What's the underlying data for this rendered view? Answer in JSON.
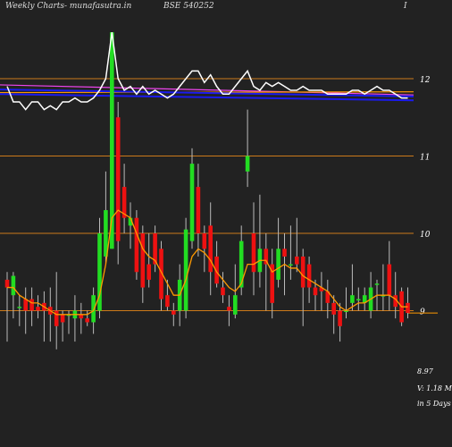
{
  "header": {
    "title_left": "Weekly Charts",
    "site": "- munafasutra.in",
    "symbol": "BSE 540252",
    "corner": "I"
  },
  "footer": {
    "last_price": "8.97",
    "volume_text": "V: 1.18  M",
    "period_text": "in 5 Days"
  },
  "colors": {
    "background": "#222222",
    "up": "#22dd22",
    "down": "#ee1111",
    "level_line": "#cc7a1a",
    "ema_line": "#ff9900",
    "rsi_line": "#ffffff",
    "band_blue": "#1a1aee",
    "band_pink": "#ee44ee"
  },
  "chart_data": {
    "type": "candlestick",
    "y_axis": {
      "ticks": [
        12,
        11,
        10,
        9
      ],
      "range": [
        8.2,
        12.5
      ]
    },
    "levels": [
      12,
      11,
      10,
      9
    ],
    "candles": [
      [
        9.4,
        9.3,
        9.5,
        8.6
      ],
      [
        9.2,
        9.45,
        9.5,
        8.9
      ],
      [
        9.05,
        9.05,
        9.2,
        8.8
      ],
      [
        9.15,
        9.0,
        9.3,
        8.7
      ],
      [
        9.15,
        9.0,
        9.3,
        8.8
      ],
      [
        9.05,
        9.0,
        9.2,
        8.9
      ],
      [
        9.1,
        9.0,
        9.25,
        8.6
      ],
      [
        9.05,
        8.95,
        9.3,
        8.6
      ],
      [
        9.0,
        8.8,
        9.5,
        8.5
      ],
      [
        8.95,
        8.85,
        9.0,
        8.6
      ],
      [
        8.95,
        8.95,
        9.0,
        8.7
      ],
      [
        8.9,
        9.0,
        9.2,
        8.6
      ],
      [
        8.95,
        8.9,
        9.1,
        8.7
      ],
      [
        8.9,
        8.85,
        9.0,
        8.8
      ],
      [
        8.85,
        9.2,
        9.3,
        8.7
      ],
      [
        9.0,
        10.0,
        10.2,
        8.9
      ],
      [
        9.7,
        10.3,
        10.8,
        9.6
      ],
      [
        9.8,
        12.6,
        12.6,
        9.8
      ],
      [
        11.5,
        9.9,
        11.7,
        9.6
      ],
      [
        10.6,
        10.2,
        10.9,
        10.0
      ],
      [
        10.1,
        10.2,
        10.4,
        9.8
      ],
      [
        10.2,
        9.5,
        10.3,
        9.4
      ],
      [
        10.0,
        9.3,
        10.1,
        9.1
      ],
      [
        9.6,
        9.4,
        10.0,
        9.3
      ],
      [
        10.0,
        9.6,
        10.1,
        9.5
      ],
      [
        9.8,
        9.15,
        9.9,
        9.0
      ],
      [
        9.2,
        9.05,
        9.4,
        9.0
      ],
      [
        9.0,
        8.95,
        9.1,
        8.8
      ],
      [
        9.0,
        9.4,
        9.6,
        8.8
      ],
      [
        9.0,
        10.05,
        10.2,
        8.9
      ],
      [
        9.9,
        10.9,
        11.1,
        9.8
      ],
      [
        10.6,
        10.0,
        10.9,
        9.7
      ],
      [
        10.0,
        9.8,
        10.1,
        9.5
      ],
      [
        10.1,
        9.5,
        10.4,
        9.2
      ],
      [
        9.7,
        9.35,
        9.9,
        9.3
      ],
      [
        9.3,
        9.2,
        9.5,
        9.1
      ],
      [
        9.05,
        9.0,
        9.2,
        8.8
      ],
      [
        8.95,
        9.2,
        9.6,
        8.9
      ],
      [
        9.3,
        9.9,
        10.1,
        9.2
      ],
      [
        10.8,
        11.0,
        11.6,
        10.6
      ],
      [
        10.0,
        9.5,
        10.4,
        9.2
      ],
      [
        9.5,
        9.8,
        10.5,
        9.3
      ],
      [
        9.8,
        9.6,
        10.0,
        9.0
      ],
      [
        9.6,
        9.1,
        9.8,
        8.9
      ],
      [
        9.4,
        9.8,
        10.2,
        9.3
      ],
      [
        9.8,
        9.7,
        10.0,
        9.2
      ],
      [
        9.6,
        9.6,
        10.1,
        9.4
      ],
      [
        9.7,
        9.6,
        10.2,
        9.5
      ],
      [
        9.7,
        9.3,
        9.8,
        8.8
      ],
      [
        9.6,
        9.3,
        9.7,
        9.1
      ],
      [
        9.3,
        9.2,
        9.4,
        9.0
      ],
      [
        9.3,
        9.25,
        9.5,
        9.0
      ],
      [
        9.25,
        9.1,
        9.4,
        8.9
      ],
      [
        9.1,
        8.95,
        9.2,
        8.7
      ],
      [
        9.0,
        8.8,
        9.1,
        8.6
      ],
      [
        9.0,
        9.0,
        9.3,
        8.9
      ],
      [
        9.1,
        9.2,
        9.6,
        9.0
      ],
      [
        9.15,
        9.15,
        9.3,
        9.0
      ],
      [
        9.1,
        9.2,
        9.3,
        9.0
      ],
      [
        9.0,
        9.3,
        9.5,
        8.9
      ],
      [
        9.35,
        9.35,
        9.4,
        9.0
      ],
      [
        9.2,
        9.2,
        9.6,
        9.0
      ],
      [
        9.6,
        9.2,
        9.9,
        9.0
      ],
      [
        9.2,
        9.05,
        9.5,
        8.9
      ],
      [
        9.25,
        8.85,
        9.3,
        8.8
      ],
      [
        9.1,
        8.97,
        9.3,
        8.9
      ]
    ],
    "ema_overlay": [
      9.3,
      9.3,
      9.2,
      9.15,
      9.1,
      9.1,
      9.05,
      9.0,
      8.95,
      8.95,
      8.95,
      8.95,
      8.95,
      8.95,
      9.0,
      9.2,
      9.6,
      10.2,
      10.3,
      10.25,
      10.2,
      10.0,
      9.8,
      9.7,
      9.65,
      9.5,
      9.35,
      9.2,
      9.2,
      9.4,
      9.7,
      9.8,
      9.75,
      9.65,
      9.5,
      9.4,
      9.3,
      9.25,
      9.35,
      9.6,
      9.6,
      9.65,
      9.65,
      9.5,
      9.55,
      9.6,
      9.55,
      9.55,
      9.45,
      9.4,
      9.35,
      9.3,
      9.25,
      9.15,
      9.05,
      9.0,
      9.05,
      9.1,
      9.1,
      9.15,
      9.2,
      9.2,
      9.2,
      9.15,
      9.05,
      9.05
    ],
    "rsi_overlay": [
      11.9,
      11.7,
      11.7,
      11.6,
      11.7,
      11.7,
      11.6,
      11.65,
      11.6,
      11.7,
      11.7,
      11.75,
      11.7,
      11.7,
      11.75,
      11.85,
      12.0,
      12.6,
      12.0,
      11.85,
      11.9,
      11.8,
      11.9,
      11.8,
      11.85,
      11.8,
      11.75,
      11.8,
      11.9,
      12.0,
      12.1,
      12.1,
      11.95,
      12.05,
      11.9,
      11.8,
      11.8,
      11.9,
      12.0,
      12.1,
      11.9,
      11.85,
      11.95,
      11.9,
      11.95,
      11.9,
      11.85,
      11.85,
      11.9,
      11.85,
      11.85,
      11.85,
      11.8,
      11.8,
      11.8,
      11.8,
      11.85,
      11.85,
      11.8,
      11.85,
      11.9,
      11.85,
      11.85,
      11.8,
      11.75,
      11.75
    ],
    "band_overlays": [
      {
        "color": "#ee44ee",
        "from": 11.92,
        "to": 11.79
      },
      {
        "color": "#ff9900",
        "from": 11.82,
        "to": 11.83
      },
      {
        "color": "#1a1aee",
        "from": 11.86,
        "to": 11.77
      },
      {
        "color": "#1a1aee",
        "from": 11.8,
        "to": 11.72
      }
    ]
  }
}
